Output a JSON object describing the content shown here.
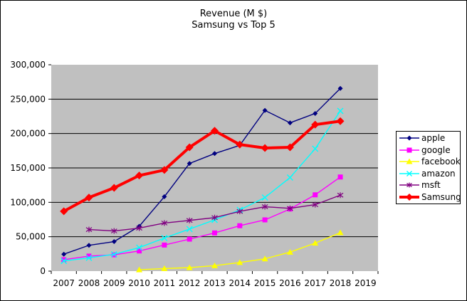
{
  "title": {
    "line1": "Revenue  (M $)",
    "line2": "Samsung vs Top 5"
  },
  "colors": {
    "plot_background": "#C0C0C0",
    "gridline": "#000000",
    "axis": "#000000",
    "text": "#000000",
    "legend_background": "#FFFFFF"
  },
  "chart_data": {
    "type": "line",
    "title": "Revenue  (M $)",
    "subtitle": "Samsung vs Top 5",
    "x": [
      2007,
      2008,
      2009,
      2010,
      2011,
      2012,
      2013,
      2014,
      2015,
      2016,
      2017,
      2018
    ],
    "x_axis_labels": [
      "2007",
      "2008",
      "2009",
      "2010",
      "2011",
      "2012",
      "2013",
      "2014",
      "2015",
      "2016",
      "2017",
      "2018",
      "2019"
    ],
    "ylim": [
      0,
      300000
    ],
    "ytick_step": 50000,
    "yticks": [
      0,
      50000,
      100000,
      150000,
      200000,
      250000,
      300000
    ],
    "ytick_labels": [
      "0",
      "50,000",
      "100,000",
      "150,000",
      "200,000",
      "250,000",
      "300,000"
    ],
    "grid": true,
    "legend_position": "right",
    "series": [
      {
        "name": "apple",
        "color": "#000080",
        "marker": "diamond",
        "emphasis": false,
        "values": [
          24600,
          37500,
          42900,
          65200,
          108200,
          156500,
          170900,
          182800,
          233700,
          215600,
          229200,
          265600
        ]
      },
      {
        "name": "google",
        "color": "#FF00FF",
        "marker": "square",
        "emphasis": false,
        "values": [
          16600,
          21800,
          23700,
          29300,
          37900,
          46500,
          55500,
          66000,
          74500,
          90300,
          110900,
          136800
        ]
      },
      {
        "name": "facebook",
        "color": "#FFFF00",
        "marker": "triangle",
        "emphasis": false,
        "values": [
          null,
          null,
          null,
          2000,
          3700,
          5100,
          7900,
          12500,
          17900,
          27600,
          40700,
          55800
        ]
      },
      {
        "name": "amazon",
        "color": "#00FFFF",
        "marker": "x",
        "emphasis": false,
        "values": [
          14800,
          19200,
          24500,
          34200,
          48100,
          61100,
          74500,
          89000,
          107000,
          136000,
          177900,
          232900
        ]
      },
      {
        "name": "msft",
        "color": "#800080",
        "marker": "asterisk",
        "emphasis": false,
        "values": [
          null,
          60400,
          58400,
          62500,
          69900,
          73700,
          77800,
          86800,
          93600,
          91200,
          96600,
          110400
        ]
      },
      {
        "name": "Samsung",
        "color": "#FF0000",
        "marker": "diamond",
        "emphasis": true,
        "values": [
          87000,
          107000,
          121000,
          139000,
          147000,
          180000,
          204000,
          184000,
          179000,
          180000,
          213000,
          218000
        ]
      }
    ]
  }
}
